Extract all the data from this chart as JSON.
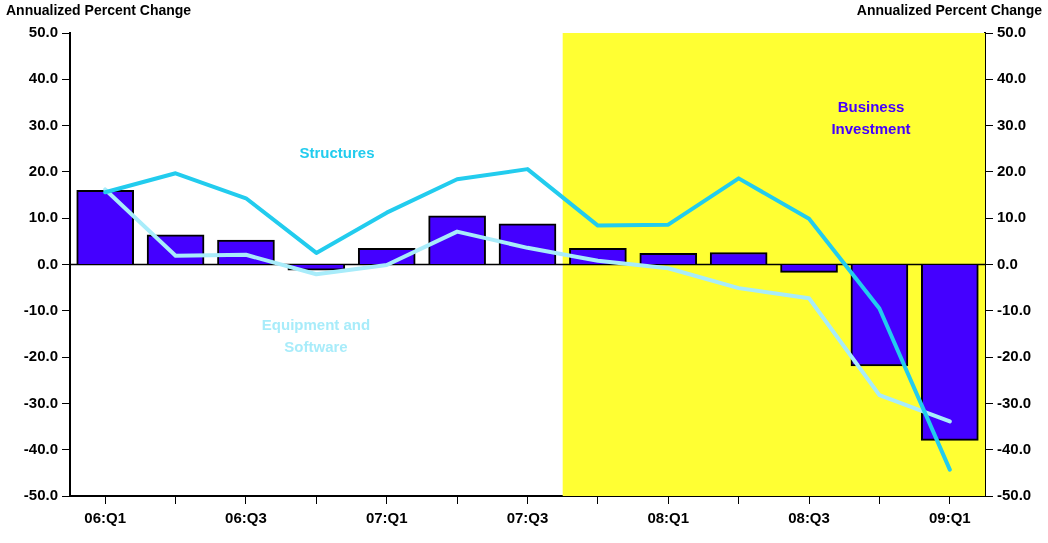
{
  "chart_data": {
    "type": "bar",
    "ylabel": "Annualized Percent Change",
    "y2label": "Annualized Percent Change",
    "categories": [
      "06:Q1",
      null,
      "06:Q3",
      null,
      "07:Q1",
      null,
      "07:Q3",
      null,
      "08:Q1",
      null,
      "08:Q3",
      null,
      "09:Q1"
    ],
    "ylim": [
      -50,
      50
    ],
    "yticks": [
      {
        "value": -50,
        "label": "-50.0"
      },
      {
        "value": -40,
        "label": "-40.0"
      },
      {
        "value": -30,
        "label": "-30.0"
      },
      {
        "value": -20,
        "label": "-20.0"
      },
      {
        "value": -10,
        "label": "-10.0"
      },
      {
        "value": 0,
        "label": "0.0"
      },
      {
        "value": 10,
        "label": "10.0"
      },
      {
        "value": 20,
        "label": "20.0"
      },
      {
        "value": 30,
        "label": "30.0"
      },
      {
        "value": 40,
        "label": "40.0"
      },
      {
        "value": 50,
        "label": "50.0"
      }
    ],
    "y2lim": [
      -50,
      50
    ],
    "y2ticks": [
      {
        "value": -50,
        "label": "-50.0"
      },
      {
        "value": -40,
        "label": "-40.0"
      },
      {
        "value": -30,
        "label": "-30.0"
      },
      {
        "value": -20,
        "label": "-20.0"
      },
      {
        "value": -10,
        "label": "-10.0"
      },
      {
        "value": 0,
        "label": "0.0"
      },
      {
        "value": 10,
        "label": "10.0"
      },
      {
        "value": 20,
        "label": "20.0"
      },
      {
        "value": 30,
        "label": "30.0"
      },
      {
        "value": 40,
        "label": "40.0"
      },
      {
        "value": 50,
        "label": "50.0"
      }
    ],
    "grid": false,
    "legend": false,
    "marker": "none",
    "ref_lines": [
      {
        "axis": "y",
        "value": 0,
        "color": "#000000"
      }
    ],
    "bands": [
      {
        "axis": "x",
        "from": "07:Q3",
        "to": "09:Q1",
        "color": "#ffff33"
      }
    ],
    "series": [
      {
        "name": "Business Investment",
        "color": "#4400ff",
        "values": [
          16.0,
          6.4,
          5.3,
          -1.2,
          3.5,
          10.5,
          8.8,
          3.5,
          2.4,
          2.6,
          -1.7,
          -21.9,
          -38.0
        ]
      },
      {
        "name": "Equipment and Software",
        "type": "line",
        "color": "#a8ecfa",
        "values": [
          16.2,
          1.9,
          2.1,
          -2.1,
          -0.1,
          7.1,
          3.6,
          0.8,
          -0.8,
          -5.1,
          -7.3,
          -28.2,
          -33.9
        ]
      },
      {
        "name": "Structures",
        "type": "line",
        "color": "#22ccee",
        "values": [
          15.6,
          19.7,
          14.3,
          2.5,
          11.2,
          18.4,
          20.6,
          8.4,
          8.6,
          18.6,
          9.9,
          -9.5,
          -44.3
        ]
      }
    ]
  }
}
